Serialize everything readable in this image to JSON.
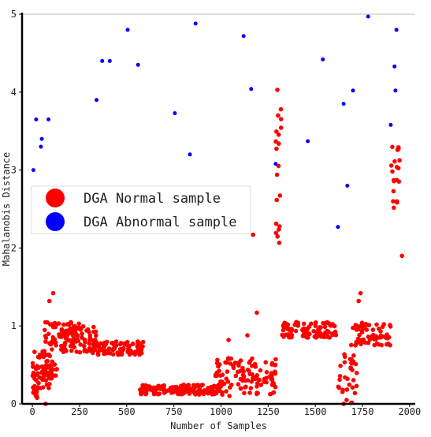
{
  "chart_data": {
    "type": "scatter",
    "xlabel": "Number of Samples",
    "ylabel": "Mahalanobis Distance",
    "xlim": [
      -55,
      2030
    ],
    "ylim": [
      0,
      5
    ],
    "xticks": [
      0,
      250,
      500,
      750,
      1000,
      1250,
      1500,
      1750,
      2000
    ],
    "yticks": [
      0,
      1,
      2,
      3,
      4,
      5
    ],
    "grid": false,
    "legend_position": "center-left",
    "series": [
      {
        "name": "DGA Normal sample",
        "color": "#ff0000",
        "segments": [
          {
            "x_start": 0,
            "x_end": 30,
            "y_min": 0.0,
            "y_max": 0.45
          },
          {
            "x_start": 0,
            "x_end": 130,
            "y_min": 0.2,
            "y_max": 0.7
          },
          {
            "x_start": 40,
            "x_end": 130,
            "y_min": 0.3,
            "y_max": 0.5
          },
          {
            "x_start": 60,
            "x_end": 260,
            "y_min": 0.75,
            "y_max": 1.05
          },
          {
            "x_start": 150,
            "x_end": 340,
            "y_min": 0.65,
            "y_max": 1.0
          },
          {
            "x_start": 300,
            "x_end": 590,
            "y_min": 0.63,
            "y_max": 0.8
          },
          {
            "x_start": 570,
            "x_end": 1000,
            "y_min": 0.12,
            "y_max": 0.25
          },
          {
            "x_start": 970,
            "x_end": 1300,
            "y_min": 0.1,
            "y_max": 0.6
          },
          {
            "x_start": 1290,
            "x_end": 1320,
            "y_min": 2.05,
            "y_max": 4.2
          },
          {
            "x_start": 1320,
            "x_end": 1610,
            "y_min": 0.85,
            "y_max": 1.05
          },
          {
            "x_start": 1620,
            "x_end": 1720,
            "y_min": 0.0,
            "y_max": 0.7
          },
          {
            "x_start": 1690,
            "x_end": 1900,
            "y_min": 0.75,
            "y_max": 1.05
          },
          {
            "x_start": 1900,
            "x_end": 1950,
            "y_min": 2.5,
            "y_max": 3.3
          }
        ],
        "points": [
          {
            "x": 110,
            "y": 1.42
          },
          {
            "x": 90,
            "y": 1.32
          },
          {
            "x": 70,
            "y": 0.0
          },
          {
            "x": 1190,
            "y": 1.17
          },
          {
            "x": 1170,
            "y": 2.17
          },
          {
            "x": 1040,
            "y": 0.82
          },
          {
            "x": 1960,
            "y": 1.9
          },
          {
            "x": 1740,
            "y": 1.42
          },
          {
            "x": 1730,
            "y": 1.32
          },
          {
            "x": 1140,
            "y": 0.88
          },
          {
            "x": 1650,
            "y": 0.0
          }
        ]
      },
      {
        "name": "DGA Abnormal sample",
        "color": "#0000ff",
        "points": [
          {
            "x": 5,
            "y": 3.0
          },
          {
            "x": 20,
            "y": 3.65
          },
          {
            "x": 45,
            "y": 3.3
          },
          {
            "x": 50,
            "y": 3.4
          },
          {
            "x": 85,
            "y": 3.65
          },
          {
            "x": 340,
            "y": 3.9
          },
          {
            "x": 370,
            "y": 4.4
          },
          {
            "x": 410,
            "y": 4.4
          },
          {
            "x": 505,
            "y": 4.8
          },
          {
            "x": 560,
            "y": 4.35
          },
          {
            "x": 755,
            "y": 3.73
          },
          {
            "x": 835,
            "y": 3.2
          },
          {
            "x": 865,
            "y": 4.88
          },
          {
            "x": 1120,
            "y": 4.72
          },
          {
            "x": 1160,
            "y": 4.04
          },
          {
            "x": 1290,
            "y": 3.08
          },
          {
            "x": 1460,
            "y": 3.37
          },
          {
            "x": 1540,
            "y": 4.42
          },
          {
            "x": 1620,
            "y": 2.27
          },
          {
            "x": 1650,
            "y": 3.85
          },
          {
            "x": 1670,
            "y": 2.8
          },
          {
            "x": 1700,
            "y": 4.02
          },
          {
            "x": 1780,
            "y": 4.97
          },
          {
            "x": 1900,
            "y": 3.58
          },
          {
            "x": 1920,
            "y": 4.33
          },
          {
            "x": 1925,
            "y": 4.02
          },
          {
            "x": 1930,
            "y": 4.8
          }
        ]
      }
    ]
  }
}
